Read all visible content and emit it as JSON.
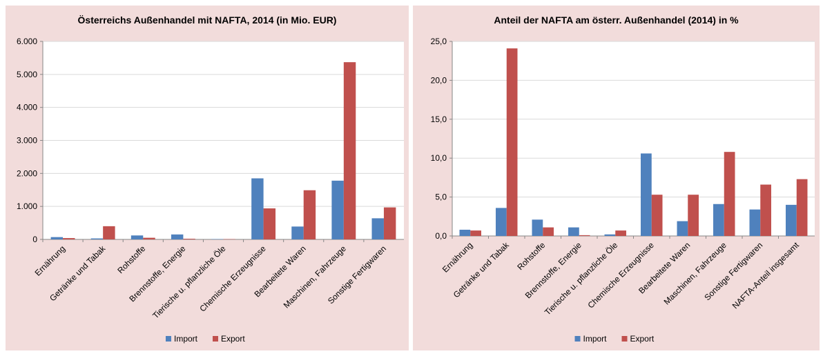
{
  "chart_data": [
    {
      "type": "bar",
      "title": "Österreichs Außenhandel mit NAFTA,  2014 (in Mio. EUR)",
      "categories": [
        "Ernährung",
        "Getränke und Tabak",
        "Rohstoffe",
        "Brennstoffe, Energie",
        "Tierische u. pflanzliche Öle",
        "Chemische Erzeugnisse",
        "Bearbeitete Waren",
        "Maschinen, Fahrzeuge",
        "Sonstige Fertigwaren"
      ],
      "series": [
        {
          "name": "Import",
          "color": "#4f81bd",
          "values": [
            70,
            30,
            120,
            150,
            10,
            1850,
            390,
            1780,
            640
          ]
        },
        {
          "name": "Export",
          "color": "#c0504d",
          "values": [
            40,
            400,
            50,
            20,
            10,
            940,
            1490,
            5370,
            970
          ]
        }
      ],
      "ylim": [
        0,
        6000
      ],
      "yticks": [
        0,
        {
          "value": 1000,
          "label": "1.000"
        },
        {
          "value": 2000,
          "label": "2.000"
        },
        {
          "value": 3000,
          "label": "3.000"
        },
        {
          "value": 4000,
          "label": "4.000"
        },
        {
          "value": 5000,
          "label": "5.000"
        },
        {
          "value": 6000,
          "label": "6.000"
        }
      ],
      "grid": true,
      "legend": "bottom"
    },
    {
      "type": "bar",
      "title": "Anteil der NAFTA am österr. Außenhandel (2014) in %",
      "categories": [
        "Ernährung",
        "Getränke und Tabak",
        "Rohstoffe",
        "Brennstoffe, Energie",
        "Tierische u. pflanzliche Öle",
        "Chemische Erzeugnisse",
        "Bearbeitete Waren",
        "Maschinen, Fahrzeuge",
        "Sonstige Fertigwaren",
        "NAFTA-Anteil insgesamt"
      ],
      "series": [
        {
          "name": "Import",
          "color": "#4f81bd",
          "values": [
            0.8,
            3.6,
            2.1,
            1.1,
            0.2,
            10.6,
            1.9,
            4.1,
            3.4,
            4.0
          ]
        },
        {
          "name": "Export",
          "color": "#c0504d",
          "values": [
            0.7,
            24.1,
            1.1,
            0.1,
            0.7,
            5.3,
            5.3,
            10.8,
            6.6,
            7.3
          ]
        }
      ],
      "ylim": [
        0,
        25
      ],
      "yticks": [
        {
          "value": 0,
          "label": "0,0"
        },
        {
          "value": 5,
          "label": "5,0"
        },
        {
          "value": 10,
          "label": "10,0"
        },
        {
          "value": 15,
          "label": "15,0"
        },
        {
          "value": 20,
          "label": "20,0"
        },
        {
          "value": 25,
          "label": "25,0"
        }
      ],
      "grid": true,
      "legend": "bottom"
    }
  ]
}
